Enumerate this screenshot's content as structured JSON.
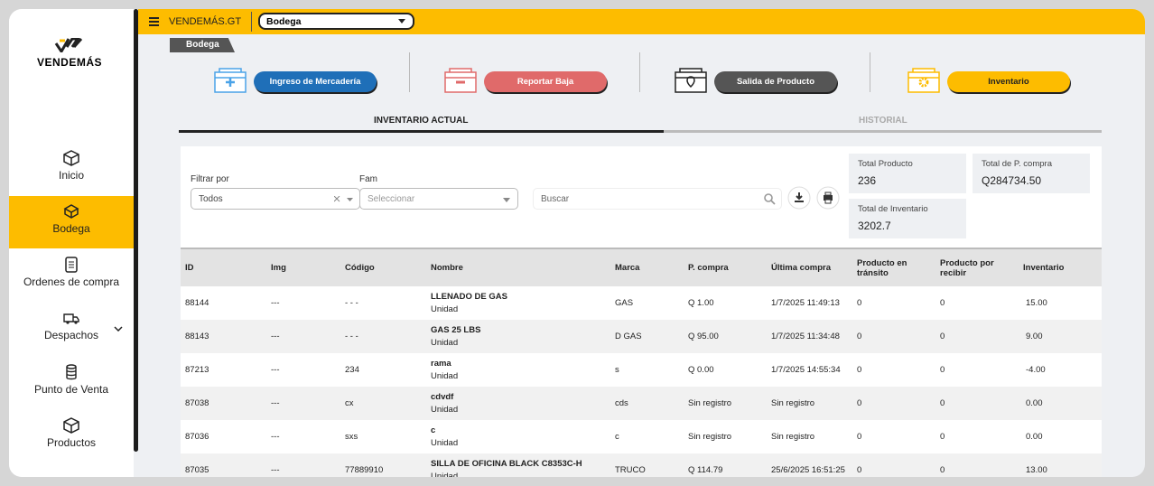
{
  "brand": "VENDEMÁS",
  "topbar": {
    "site": "VENDEMÁS.GT",
    "store": "Bodega"
  },
  "breadcrumb": "Bodega",
  "nav": [
    {
      "label": "Inicio"
    },
    {
      "label": "Bodega"
    },
    {
      "label": "Ordenes de compra"
    },
    {
      "label": "Despachos"
    },
    {
      "label": "Punto de Venta"
    },
    {
      "label": "Productos"
    }
  ],
  "actions": [
    "Ingreso de Mercadería",
    "Reportar Baja",
    "Salida de Producto",
    "Inventario"
  ],
  "tabs": [
    "INVENTARIO ACTUAL",
    "HISTORIAL"
  ],
  "filters": {
    "filter_label": "Filtrar por",
    "filter_value": "Todos",
    "fam_label": "Fam",
    "fam_placeholder": "Seleccionar",
    "search_placeholder": "Buscar"
  },
  "stats": [
    {
      "label": "Total Producto",
      "value": "236"
    },
    {
      "label": "Total de P. compra",
      "value": "Q284734.50"
    },
    {
      "label": "Total de Inventario",
      "value": "3202.7"
    }
  ],
  "table": {
    "headers": [
      "ID",
      "Img",
      "Código",
      "Nombre",
      "Marca",
      "P. compra",
      "Última compra",
      "Producto en tránsito",
      "Producto por recibir",
      "Inventario"
    ],
    "rows": [
      [
        "88144",
        "---",
        "- - -",
        [
          "LLENADO DE GAS",
          "Unidad"
        ],
        "GAS",
        "Q 1.00",
        "1/7/2025 11:49:13",
        "0",
        "0",
        "15.00"
      ],
      [
        "88143",
        "---",
        "- - -",
        [
          "GAS 25 LBS",
          "Unidad"
        ],
        "D GAS",
        "Q 95.00",
        "1/7/2025 11:34:48",
        "0",
        "0",
        "9.00"
      ],
      [
        "87213",
        "---",
        "234",
        [
          "rama",
          "Unidad"
        ],
        "s",
        "Q 0.00",
        "1/7/2025 14:55:34",
        "0",
        "0",
        "-4.00"
      ],
      [
        "87038",
        "---",
        "cx",
        [
          "cdvdf",
          "Unidad"
        ],
        "cds",
        "Sin registro",
        "Sin registro",
        "0",
        "0",
        "0.00"
      ],
      [
        "87036",
        "---",
        "sxs",
        [
          "c",
          "Unidad"
        ],
        "c",
        "Sin registro",
        "Sin registro",
        "0",
        "0",
        "0.00"
      ],
      [
        "87035",
        "---",
        "77889910",
        [
          "SILLA DE OFICINA BLACK C8353C-H",
          "Unidad"
        ],
        "TRUCO",
        "Q 114.79",
        "25/6/2025 16:51:25",
        "0",
        "0",
        "13.00"
      ]
    ]
  }
}
